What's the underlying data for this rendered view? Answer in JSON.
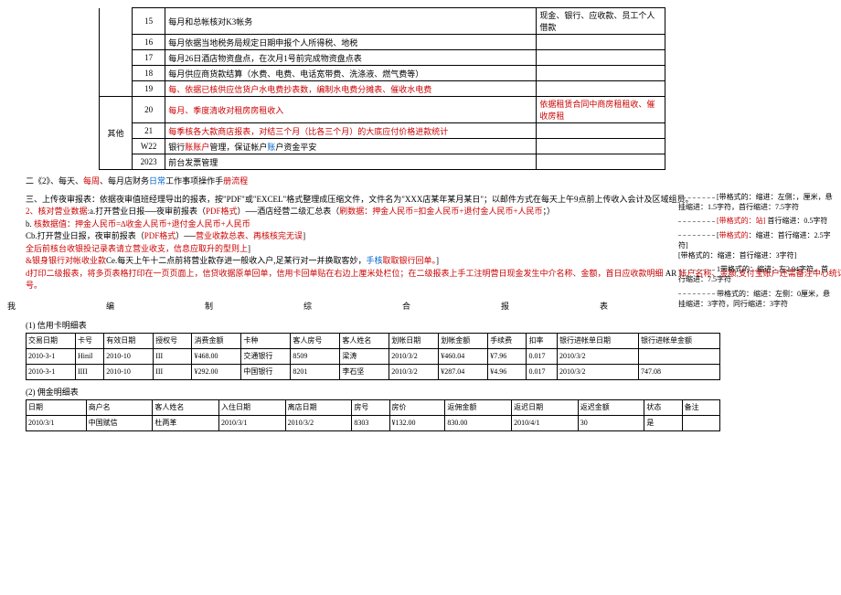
{
  "rows": [
    {
      "n": "15",
      "txt": "每月和总帐核对K3帐务",
      "extra": "现金、银行、应收款、员工个人借款"
    },
    {
      "n": "16",
      "txt": "每月依据当地税务局规定日期申报个人所得税、地税"
    },
    {
      "n": "17",
      "txt": "每月26日酒店物资盘点，在次月1号前完成物资盘点表"
    },
    {
      "n": "18",
      "txt": "每月供应商货款结算（水费、电费、电话宽带费、洗涤液、燃气费等）"
    },
    {
      "n": "19",
      "txt": "每、依据已核供应信货户水电费抄表数，编制水电费分摊表、催收水电费",
      "cls": "red"
    },
    {
      "n": "20",
      "txt": "每月、季度清收对租房房租收入",
      "extra": "依据租赁合同中商房租租收、催收房租",
      "cls": "red"
    },
    {
      "n": "21",
      "txt": "每季核各大款商店报表，对结三个月（比各三个月）的大底应付价格进款统计",
      "cls": "red"
    },
    {
      "n": "W22",
      "txt": "银行<span class=red>账账户</span>管理，保证帐户<span class=blue>账</span>户资金平安"
    },
    {
      "n": "2023",
      "txt": "前台发票管理"
    }
  ],
  "sideLabel": "其他",
  "sec2": "二《2》、每天、<span class=red>每周</span>、每月店财务<span class=blue>日常</span>工作事项操作手<span class=red>册流程</span>",
  "notes": [
    "三、上传夜审报表：依据夜审值班经理导出的报表，按\"PDF\"或\"EXCEL\"格式整理成压缩文件，文件名为\"XXX店某年某月某日\"；以邮件方式在每天上午9点前上传收入会计及区域组员。",
    "<span class=red>2、核对营业数据:</span>a.打开营业日报──夜审前报表（<span class=red>PDF格式</span>）──酒店经营二级汇总表（<span class=red>刷数据：押金人民币=扣金人民币+退付金人民币+人民币</span>；）",
    "b. <span class=red strike>核数据值：押金人民币=∆收金人民币+退付金人民币+人民币</span>",
    "Cb.打开营业日报，夜审前报表（<span class=red>PDF格式</span>）──<span class=red>营业收款总表、再核核完无误</span>]",
    "<span class=red>全后前核台收银投记录表请立营业收支，信息应取升的型则上</span>]",
    "<span class=red>&银身银行对帐收业款</span>Ce.每天上午十二点前将营业款存进一般收入户,足某行对一并换取客妙，<span class=blue>手核</span><span class=red>取取银行回单。</span>]",
    "<span class=red>d打印二级报表，将多页表格打印在一页页面上，信贷收据原单回单，信用卡回单贴在右边上厘米处栏位；在二级报表上手工注明营日现金发生中介名称、金额，首日应收款明细</span> AR <span class=red>帐户名称、金额,支付宝账户还需备注中心统订号。</span>"
  ],
  "rightNotes": [
    "[带格式的：缩进：左侧：，厘米，悬挂缩进：1.5字符，首行缩进：7.5字符",
    "<span class=red>[带格式的：站]</span> 首行缩进：0.5字符",
    "[<span class=red>带格式的</span>：缩进：首行缩进：2.5字符]<br>[带格式的：缩进：首行缩进：3字符]",
    "1带格式的：缩进：左2.94字符，首行缩进：7.5字符",
    "带格式的：缩进：左侧：0厘米，悬挂缩进：3字符，同行缩进：3字符"
  ],
  "hdr": [
    "我",
    "编",
    "制",
    "综",
    "合",
    "报",
    "表"
  ],
  "t1label": "(1) 信用卡明细表",
  "t1h": [
    "交易日期",
    "卡号",
    "有效日期",
    "授权号",
    "消费金额",
    "卡种",
    "客人房号",
    "客人姓名",
    "划帐日期",
    "划帐金额",
    "手续费",
    "扣率",
    "银行进帐单日期",
    "银行进帐单金额"
  ],
  "t1r": [
    [
      "2010-3-1",
      "Hinil",
      "2010-10",
      "III",
      "¥468.00",
      "交通银行",
      "8509",
      "梁涛",
      "2010/3/2",
      "¥460.04",
      "¥7.96",
      "0.017",
      "2010/3/2",
      ""
    ],
    [
      "2010-3-1",
      "IIII",
      "2010-10",
      "III",
      "¥292.00",
      "中国银行",
      "8201",
      "李石坚",
      "2010/3/2",
      "¥287.04",
      "¥4.96",
      "0.017",
      "2010/3/2",
      "747.08"
    ]
  ],
  "t2label": "(2) 佣金明细表",
  "t2h": [
    "日期",
    "商户名",
    "客人姓名",
    "入住日期",
    "离店日期",
    "房号",
    "房价",
    "返佣金额",
    "返迟日期",
    "返迟金额",
    "状态",
    "备注"
  ],
  "t2r": [
    [
      "2010/3/1",
      "中国赋信",
      "杜两革",
      "2010/3/1",
      "2010/3/2",
      "8303",
      "¥132.00",
      "830.00",
      "2010/4/1",
      "30",
      "是",
      ""
    ]
  ]
}
